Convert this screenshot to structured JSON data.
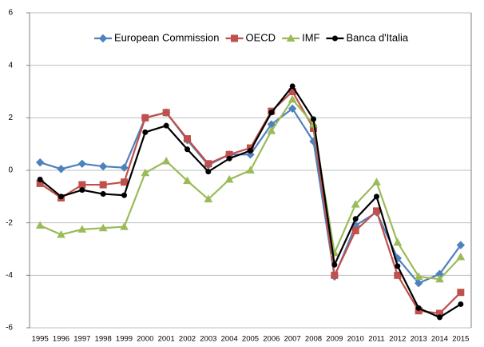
{
  "chart_data": {
    "type": "line",
    "categories": [
      "1995",
      "1996",
      "1997",
      "1998",
      "1999",
      "2000",
      "2001",
      "2002",
      "2003",
      "2004",
      "2005",
      "2006",
      "2007",
      "2008",
      "2009",
      "2010",
      "2011",
      "2012",
      "2013",
      "2014",
      "2015"
    ],
    "series": [
      {
        "name": "European Commission",
        "color": "#4f81bd",
        "marker": "diamond",
        "values": [
          0.3,
          0.05,
          0.25,
          0.15,
          0.1,
          2.0,
          2.2,
          1.15,
          0.2,
          0.6,
          0.6,
          1.75,
          2.35,
          1.1,
          -4.05,
          -2.1,
          -1.6,
          -3.35,
          -4.3,
          -3.95,
          -2.85
        ]
      },
      {
        "name": "OECD",
        "color": "#c0504d",
        "marker": "square",
        "values": [
          -0.5,
          -1.05,
          -0.55,
          -0.55,
          -0.45,
          2.0,
          2.2,
          1.2,
          0.25,
          0.6,
          0.85,
          2.25,
          3.0,
          1.6,
          -4.0,
          -2.3,
          -1.55,
          -4.0,
          -5.35,
          -5.45,
          -4.65
        ]
      },
      {
        "name": "IMF",
        "color": "#9bbb59",
        "marker": "triangle",
        "values": [
          -2.1,
          -2.45,
          -2.25,
          -2.2,
          -2.15,
          -0.1,
          0.35,
          -0.4,
          -1.1,
          -0.35,
          0.0,
          1.5,
          2.7,
          1.75,
          -3.15,
          -1.3,
          -0.45,
          -2.75,
          -4.05,
          -4.15,
          -3.3
        ]
      },
      {
        "name": "Banca d'Italia",
        "color": "#000000",
        "marker": "circle",
        "values": [
          -0.35,
          -1.0,
          -0.75,
          -0.9,
          -0.95,
          1.45,
          1.7,
          0.8,
          -0.05,
          0.45,
          0.75,
          2.2,
          3.2,
          1.95,
          -3.6,
          -1.85,
          -1.0,
          -3.65,
          -5.25,
          -5.6,
          -5.1
        ]
      }
    ],
    "ylim": [
      -6,
      6
    ],
    "yticks": [
      -6,
      -4,
      -2,
      0,
      2,
      4,
      6
    ],
    "grid": true,
    "legend": "top"
  }
}
